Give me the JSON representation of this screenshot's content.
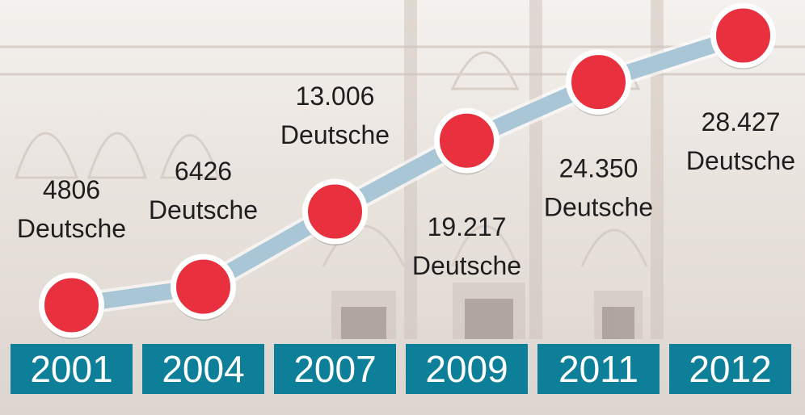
{
  "chart_data": {
    "type": "line",
    "title": "",
    "xlabel": "",
    "ylabel": "",
    "categories": [
      "2001",
      "2004",
      "2007",
      "2009",
      "2011",
      "2012"
    ],
    "series": [
      {
        "values": [
          4806,
          6426,
          13006,
          19217,
          24350,
          28427
        ],
        "value_labels": [
          "4806",
          "6426",
          "13.006",
          "19.217",
          "24.350",
          "28.427"
        ],
        "unit_label": "Deutsche"
      }
    ],
    "grid": false,
    "legend": "none",
    "colors": {
      "line": "#a9c6d6",
      "marker_fill": "#e8303f",
      "marker_stroke": "#ffffff",
      "year_box": "#0e7f98",
      "year_text": "#ffffff",
      "label_text": "#1e1e1e"
    }
  }
}
